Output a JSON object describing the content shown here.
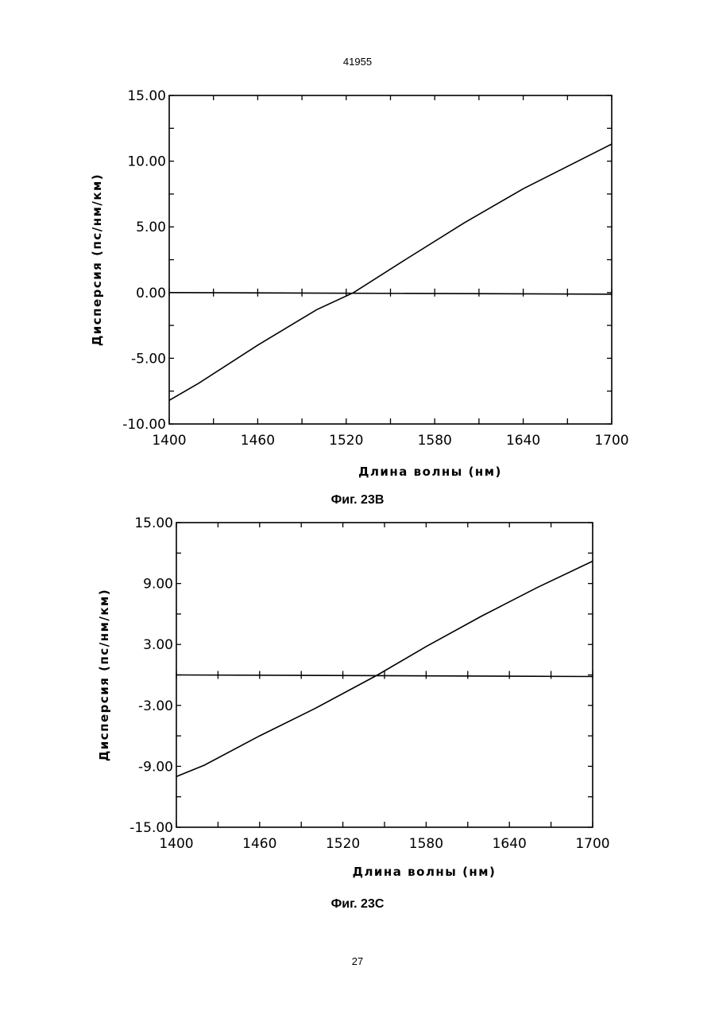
{
  "page": {
    "header_number": "41955",
    "footer_number": "27"
  },
  "figures": [
    {
      "caption": "Фиг. 23В"
    },
    {
      "caption": "Фиг. 23С"
    }
  ],
  "chart_data": [
    {
      "type": "line",
      "xlabel": "Длина волны (нм)",
      "ylabel": "Дисперсия (пс/нм/км)",
      "xlim": [
        1400,
        1700
      ],
      "ylim": [
        -10,
        15
      ],
      "x_ticks": [
        1400,
        1460,
        1520,
        1580,
        1640,
        1700
      ],
      "x_tick_labels": [
        "1400",
        "1460",
        "1520",
        "1580",
        "1640",
        "1700"
      ],
      "y_ticks": [
        -10,
        -5,
        0,
        5,
        10,
        15
      ],
      "y_tick_labels": [
        "-10.00",
        "-5.00",
        "0.00",
        "5.00",
        "10.00",
        "15.00"
      ],
      "x_minor_step": 30,
      "y_minor_step": 2.5,
      "series": [
        {
          "x": [
            1400,
            1420,
            1460,
            1500,
            1525,
            1560,
            1600,
            1640,
            1700
          ],
          "y": [
            -8.2,
            -6.9,
            -4.0,
            -1.3,
            0.0,
            2.5,
            5.3,
            7.9,
            11.3
          ]
        }
      ],
      "reference_line": {
        "y": 0
      }
    },
    {
      "type": "line",
      "xlabel": "Длина волны (нм)",
      "ylabel": "Дисперсия (пс/нм/км)",
      "xlim": [
        1400,
        1700
      ],
      "ylim": [
        -15,
        15
      ],
      "x_ticks": [
        1400,
        1460,
        1520,
        1580,
        1640,
        1700
      ],
      "x_tick_labels": [
        "1400",
        "1460",
        "1520",
        "1580",
        "1640",
        "1700"
      ],
      "y_ticks": [
        -15,
        -9,
        -3,
        3,
        9,
        15
      ],
      "y_tick_labels": [
        "-15.00",
        "-9.00",
        "-3.00",
        "3.00",
        "9.00",
        "15.00"
      ],
      "x_minor_step": 30,
      "y_minor_step": 3,
      "series": [
        {
          "x": [
            1400,
            1420,
            1460,
            1500,
            1545,
            1580,
            1620,
            1660,
            1700
          ],
          "y": [
            -10.0,
            -8.9,
            -6.0,
            -3.3,
            0.0,
            2.8,
            5.8,
            8.6,
            11.2
          ]
        }
      ],
      "reference_line": {
        "y": 0
      }
    }
  ]
}
